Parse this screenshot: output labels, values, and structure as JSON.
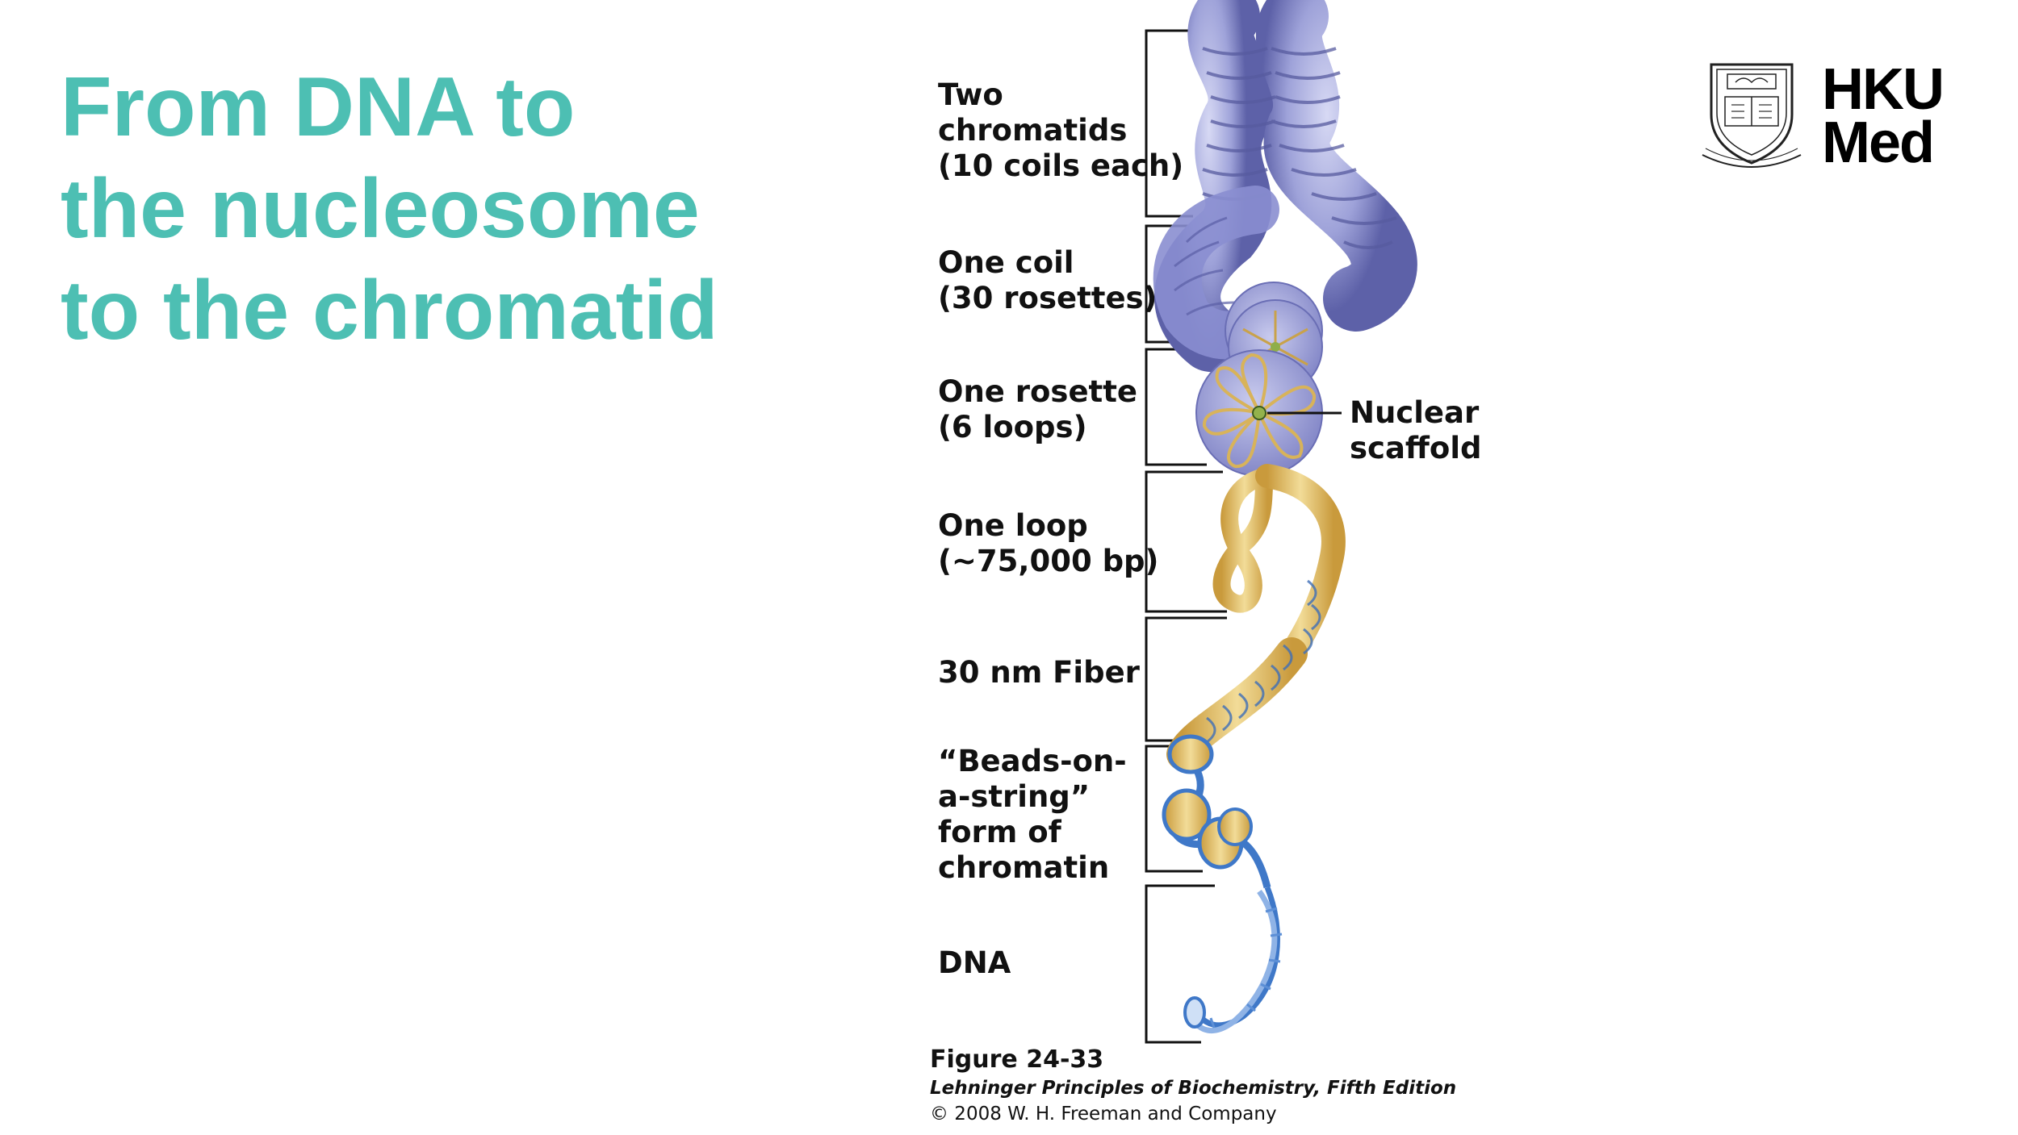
{
  "title": {
    "lines": [
      "From DNA to",
      "the nucleosome",
      "to the chromatid"
    ]
  },
  "logo": {
    "line1": "HKU",
    "line2": "Med",
    "seal_motto": "SAPIENTIA ET VIRTUS",
    "seal_chars": "明德格物"
  },
  "figure": {
    "labels": {
      "chromatids": [
        "Two",
        "chromatids",
        "(10 coils each)"
      ],
      "coil": [
        "One coil",
        "(30 rosettes)"
      ],
      "rosette": [
        "One rosette",
        "(6 loops)"
      ],
      "loop": [
        "One loop",
        "(~75,000 bp)"
      ],
      "fiber": [
        "30 nm Fiber"
      ],
      "beads": [
        "“Beads-on-",
        "a-string”",
        "form of",
        "chromatin"
      ],
      "dna": [
        "DNA"
      ],
      "scaffold": [
        "Nuclear",
        "scaffold"
      ]
    },
    "caption": {
      "figure_number": "Figure 24-33",
      "book": "Lehninger Principles of Biochemistry, Fifth Edition",
      "copyright": "© 2008 W. H. Freeman and Company"
    }
  },
  "colors": {
    "title": "#4dbfb3",
    "chromatid": "#9a9fd8",
    "fiber": "#e8c978",
    "dna": "#3f78c8"
  }
}
